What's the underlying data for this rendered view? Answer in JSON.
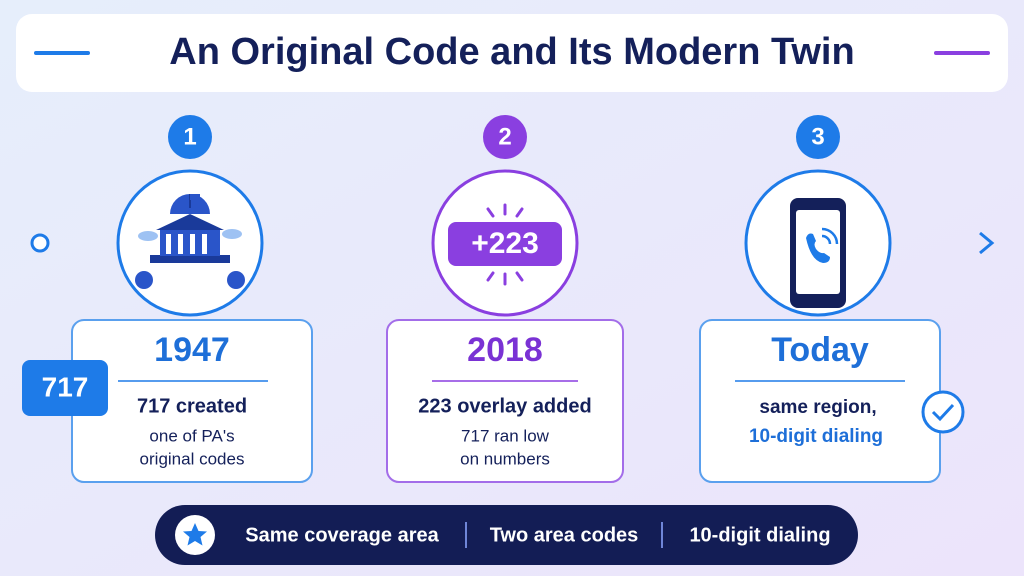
{
  "header": {
    "title": "An Original Code and Its Modern Twin"
  },
  "steps": [
    {
      "number": "1",
      "year": "1947",
      "heading": "717 created",
      "lines": [
        "one of PA's",
        "original codes"
      ],
      "badge": "717"
    },
    {
      "number": "2",
      "year": "2018",
      "heading": "223 overlay added",
      "lines": [
        "717 ran low",
        "on numbers"
      ],
      "badge": "+223"
    },
    {
      "number": "3",
      "year": "Today",
      "heading": "same region,",
      "lines": [
        "10-digit dialing"
      ]
    }
  ],
  "footer": {
    "items": [
      "Same coverage area",
      "Two area codes",
      "10-digit dialing"
    ]
  }
}
